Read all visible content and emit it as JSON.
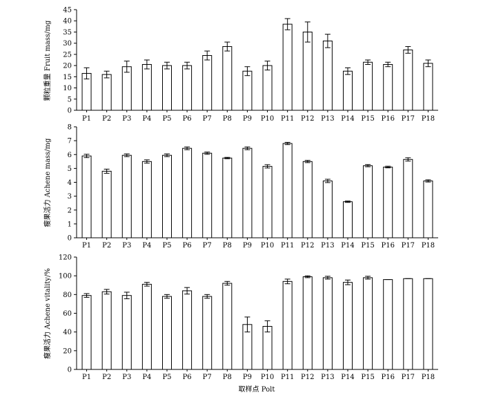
{
  "chart_data": [
    {
      "type": "bar",
      "categories": [
        "P1",
        "P2",
        "P3",
        "P4",
        "P5",
        "P6",
        "P7",
        "P8",
        "P9",
        "P10",
        "P11",
        "P12",
        "P13",
        "P14",
        "P15",
        "P16",
        "P17",
        "P18"
      ],
      "values": [
        16.5,
        16.0,
        19.5,
        20.5,
        20.0,
        20.0,
        24.5,
        28.5,
        17.5,
        20.0,
        38.5,
        35.0,
        31.0,
        17.5,
        21.5,
        20.5,
        27.0,
        21.0
      ],
      "errors": [
        2.5,
        1.5,
        2.5,
        2.0,
        1.5,
        1.5,
        2.0,
        2.0,
        2.0,
        2.0,
        2.5,
        4.5,
        3.0,
        1.5,
        1.0,
        1.0,
        1.5,
        1.5
      ],
      "ylabel": "颗粒重量 Fruit mass/mg",
      "xlabel": "",
      "ylim": [
        0,
        45
      ],
      "yticks": [
        0,
        5,
        10,
        15,
        20,
        25,
        30,
        35,
        40,
        45
      ]
    },
    {
      "type": "bar",
      "categories": [
        "P1",
        "P2",
        "P3",
        "P4",
        "P5",
        "P6",
        "P7",
        "P8",
        "P9",
        "P10",
        "P11",
        "P12",
        "P13",
        "P14",
        "P15",
        "P16",
        "P17",
        "P18"
      ],
      "values": [
        5.9,
        4.8,
        5.95,
        5.5,
        5.95,
        6.45,
        6.1,
        5.75,
        6.45,
        5.15,
        6.8,
        5.5,
        4.1,
        2.6,
        5.2,
        5.1,
        5.65,
        4.1
      ],
      "errors": [
        0.12,
        0.15,
        0.1,
        0.12,
        0.1,
        0.1,
        0.08,
        0.05,
        0.1,
        0.12,
        0.08,
        0.08,
        0.12,
        0.05,
        0.08,
        0.06,
        0.12,
        0.08
      ],
      "ylabel": "瘦果活力 Achene mass/mg",
      "xlabel": "",
      "ylim": [
        0,
        8
      ],
      "yticks": [
        0,
        1,
        2,
        3,
        4,
        5,
        6,
        7,
        8
      ]
    },
    {
      "type": "bar",
      "categories": [
        "P1",
        "P2",
        "P3",
        "P4",
        "P5",
        "P6",
        "P7",
        "P8",
        "P9",
        "P10",
        "P11",
        "P12",
        "P13",
        "P14",
        "P15",
        "P16",
        "P17",
        "P18"
      ],
      "values": [
        79,
        83,
        79,
        91,
        78,
        84,
        78,
        92,
        48,
        46,
        94,
        99,
        98,
        93,
        98,
        96,
        97,
        97
      ],
      "errors": [
        2,
        2.5,
        3.5,
        2,
        2,
        3.5,
        2,
        2,
        8,
        6,
        2.5,
        1,
        1.5,
        2.5,
        1.5,
        0,
        0,
        0
      ],
      "ylabel": "瘦果活力 Achene vitality/%",
      "xlabel": "取样点 Polt",
      "ylim": [
        0,
        120
      ],
      "yticks": [
        0,
        20,
        40,
        60,
        80,
        100,
        120
      ]
    }
  ]
}
